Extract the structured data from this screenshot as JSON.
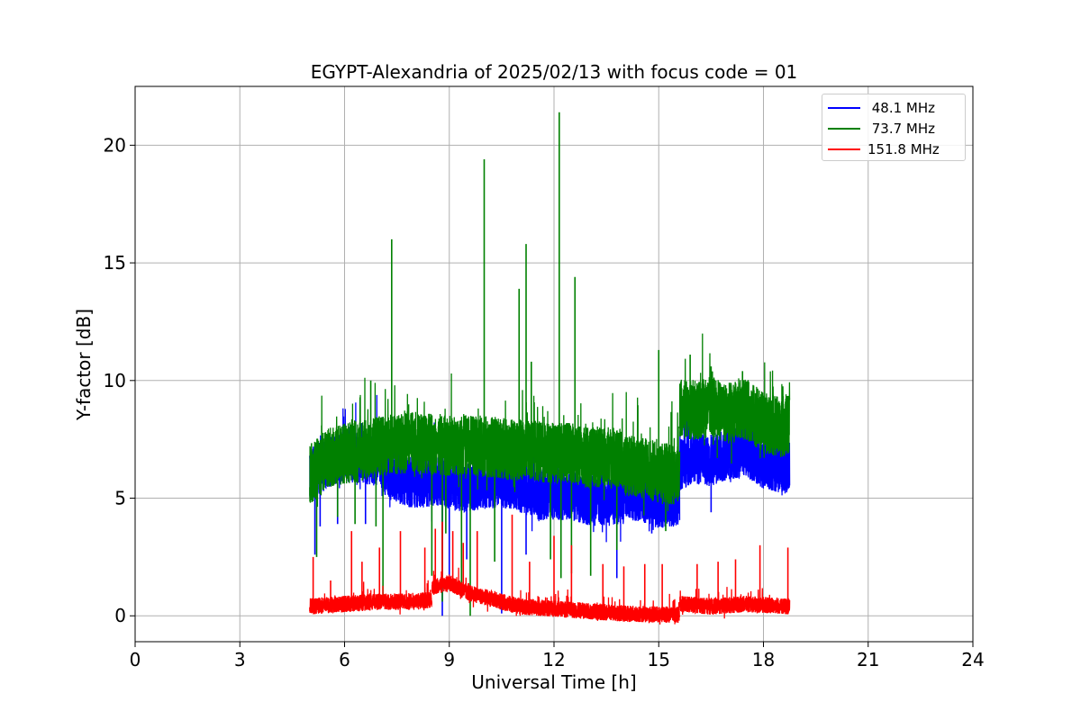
{
  "chart_data": {
    "type": "line",
    "title": "EGYPT-Alexandria of 2025/02/13 with focus code = 01",
    "xlabel": "Universal Time [h]",
    "ylabel": "Y-factor [dB]",
    "xlim": [
      0,
      24
    ],
    "ylim": [
      -1.1,
      22.5
    ],
    "xticks": [
      0,
      3,
      6,
      9,
      12,
      15,
      18,
      21,
      24
    ],
    "yticks": [
      0,
      5,
      10,
      15,
      20
    ],
    "grid": true,
    "legend_position": "top-right",
    "series": [
      {
        "name": " 48.1 MHz",
        "color": "#0000ff",
        "baseline_segments": [
          {
            "x": [
              5.0,
              5.3,
              5.6,
              6.0,
              6.5,
              7.0
            ],
            "y": [
              6.0,
              6.3,
              6.6,
              6.8,
              6.7,
              6.6
            ]
          },
          {
            "x": [
              7.0,
              7.3,
              7.8,
              8.3,
              8.8,
              9.0
            ],
            "y": [
              6.5,
              6.0,
              5.7,
              5.7,
              5.8,
              5.6
            ]
          },
          {
            "x": [
              9.0,
              9.5,
              10.0,
              10.5,
              11.0,
              11.5
            ],
            "y": [
              5.6,
              5.5,
              5.6,
              5.7,
              5.5,
              5.2
            ]
          },
          {
            "x": [
              11.5,
              12.0,
              12.5,
              13.0,
              13.5,
              14.0
            ],
            "y": [
              5.1,
              5.2,
              5.1,
              4.9,
              4.9,
              5.0
            ]
          },
          {
            "x": [
              14.0,
              14.5,
              15.0,
              15.5,
              15.6
            ],
            "y": [
              5.2,
              5.1,
              4.8,
              4.9,
              5.0
            ]
          },
          {
            "x": [
              15.6,
              16.0,
              16.5,
              17.0,
              17.5,
              18.0,
              18.5,
              18.75
            ],
            "y": [
              6.4,
              6.7,
              6.6,
              6.9,
              7.0,
              6.5,
              6.3,
              6.3
            ]
          }
        ],
        "noise": 1.1,
        "dips": [
          {
            "x": 5.15,
            "y": 2.6
          },
          {
            "x": 5.3,
            "y": 3.8
          },
          {
            "x": 5.8,
            "y": 3.9
          },
          {
            "x": 6.6,
            "y": 3.9
          },
          {
            "x": 8.8,
            "y": 0.0
          },
          {
            "x": 9.0,
            "y": 1.2
          },
          {
            "x": 9.5,
            "y": 2.4
          },
          {
            "x": 10.5,
            "y": 0.1
          },
          {
            "x": 11.2,
            "y": 2.6
          },
          {
            "x": 13.8,
            "y": 1.6
          },
          {
            "x": 14.8,
            "y": 3.5
          },
          {
            "x": 15.3,
            "y": 4.1
          },
          {
            "x": 16.5,
            "y": 4.4
          }
        ]
      },
      {
        "name": " 73.7 MHz",
        "color": "#008000",
        "baseline_segments": [
          {
            "x": [
              5.0,
              5.5,
              6.0,
              6.5,
              7.0,
              7.5,
              8.0
            ],
            "y": [
              6.0,
              6.7,
              6.9,
              7.0,
              7.2,
              7.3,
              7.4
            ]
          },
          {
            "x": [
              8.0,
              8.5,
              9.0,
              9.5,
              10.0,
              10.5,
              11.0
            ],
            "y": [
              7.3,
              7.3,
              7.2,
              7.3,
              7.2,
              7.1,
              7.0
            ]
          },
          {
            "x": [
              11.0,
              11.5,
              12.0,
              12.5,
              13.0,
              13.5,
              14.0
            ],
            "y": [
              7.1,
              7.0,
              6.9,
              6.9,
              6.7,
              6.8,
              6.6
            ]
          },
          {
            "x": [
              14.0,
              14.5,
              15.0,
              15.5,
              15.6
            ],
            "y": [
              6.4,
              6.3,
              6.1,
              6.0,
              6.2
            ]
          },
          {
            "x": [
              15.6,
              16.0,
              16.5,
              17.0,
              17.5,
              18.0,
              18.5,
              18.75
            ],
            "y": [
              8.8,
              8.7,
              8.9,
              8.6,
              8.8,
              8.2,
              8.0,
              8.2
            ]
          }
        ],
        "noise": 1.3,
        "spikes": [
          {
            "x": 6.75,
            "y": 10.0
          },
          {
            "x": 7.35,
            "y": 16.0
          },
          {
            "x": 10.0,
            "y": 19.4
          },
          {
            "x": 11.0,
            "y": 13.9
          },
          {
            "x": 11.2,
            "y": 15.8
          },
          {
            "x": 11.35,
            "y": 10.8
          },
          {
            "x": 12.15,
            "y": 21.4
          },
          {
            "x": 12.6,
            "y": 14.4
          },
          {
            "x": 15.0,
            "y": 11.3
          },
          {
            "x": 15.9,
            "y": 11.1
          },
          {
            "x": 16.5,
            "y": 10.6
          },
          {
            "x": 17.4,
            "y": 10.4
          }
        ],
        "dips": [
          {
            "x": 5.2,
            "y": 2.5
          },
          {
            "x": 5.8,
            "y": 4.2
          },
          {
            "x": 6.3,
            "y": 3.9
          },
          {
            "x": 6.9,
            "y": 3.8
          },
          {
            "x": 7.1,
            "y": 0.5
          },
          {
            "x": 8.5,
            "y": 1.7
          },
          {
            "x": 8.8,
            "y": 0.6
          },
          {
            "x": 8.9,
            "y": 3.5
          },
          {
            "x": 9.35,
            "y": 0.8
          },
          {
            "x": 9.6,
            "y": 0.0
          },
          {
            "x": 10.3,
            "y": 2.3
          },
          {
            "x": 11.9,
            "y": 2.4
          },
          {
            "x": 12.2,
            "y": 1.6
          },
          {
            "x": 12.5,
            "y": 1.8
          },
          {
            "x": 13.05,
            "y": 1.7
          },
          {
            "x": 13.8,
            "y": 2.8
          },
          {
            "x": 15.2,
            "y": 3.6
          }
        ]
      },
      {
        "name": "151.8 MHz",
        "color": "#ff0000",
        "baseline_segments": [
          {
            "x": [
              5.0,
              6.0,
              7.0,
              8.0,
              8.5
            ],
            "y": [
              0.4,
              0.5,
              0.6,
              0.6,
              0.7
            ]
          },
          {
            "x": [
              8.5,
              9.0,
              9.5,
              10.0,
              10.5,
              11.0
            ],
            "y": [
              1.2,
              1.4,
              1.0,
              0.8,
              0.6,
              0.4
            ]
          },
          {
            "x": [
              11.0,
              12.0,
              13.0,
              14.0,
              15.0,
              15.6
            ],
            "y": [
              0.4,
              0.3,
              0.2,
              0.1,
              0.05,
              0.05
            ]
          },
          {
            "x": [
              15.6,
              16.5,
              17.5,
              18.75
            ],
            "y": [
              0.5,
              0.4,
              0.5,
              0.4
            ]
          }
        ],
        "noise": 0.35,
        "spikes": [
          {
            "x": 5.1,
            "y": 2.5
          },
          {
            "x": 5.6,
            "y": 1.5
          },
          {
            "x": 6.2,
            "y": 3.6
          },
          {
            "x": 6.5,
            "y": 2.3
          },
          {
            "x": 7.0,
            "y": 2.9
          },
          {
            "x": 7.6,
            "y": 3.6
          },
          {
            "x": 8.3,
            "y": 2.9
          },
          {
            "x": 8.6,
            "y": 3.7
          },
          {
            "x": 8.8,
            "y": 4.0
          },
          {
            "x": 9.1,
            "y": 3.6
          },
          {
            "x": 9.4,
            "y": 3.1
          },
          {
            "x": 9.8,
            "y": 3.6
          },
          {
            "x": 10.8,
            "y": 4.3
          },
          {
            "x": 11.3,
            "y": 2.3
          },
          {
            "x": 12.0,
            "y": 3.4
          },
          {
            "x": 12.5,
            "y": 3.0
          },
          {
            "x": 13.4,
            "y": 2.2
          },
          {
            "x": 14.0,
            "y": 2.1
          },
          {
            "x": 14.6,
            "y": 2.2
          },
          {
            "x": 15.1,
            "y": 2.2
          },
          {
            "x": 16.1,
            "y": 2.2
          },
          {
            "x": 16.7,
            "y": 2.3
          },
          {
            "x": 17.2,
            "y": 2.4
          },
          {
            "x": 17.9,
            "y": 3.0
          },
          {
            "x": 18.7,
            "y": 2.9
          }
        ]
      }
    ]
  }
}
